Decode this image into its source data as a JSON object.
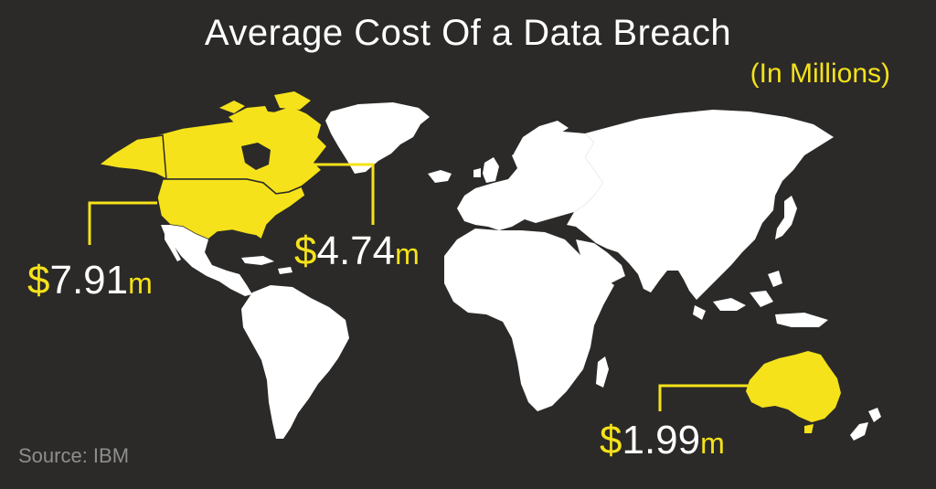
{
  "title": "Average Cost Of a Data Breach",
  "subtitle": "(In Millions)",
  "source": "Source: IBM",
  "colors": {
    "background": "#2b2a29",
    "land": "#ffffff",
    "highlight": "#f5e21a",
    "border": "#2b2a29",
    "source_text": "#8e8e8e"
  },
  "callouts": [
    {
      "region": "United States",
      "currency": "$",
      "amount": "7.91",
      "unit": "m"
    },
    {
      "region": "Canada",
      "currency": "$",
      "amount": "4.74",
      "unit": "m"
    },
    {
      "region": "Australia",
      "currency": "$",
      "amount": "1.99",
      "unit": "m"
    }
  ]
}
